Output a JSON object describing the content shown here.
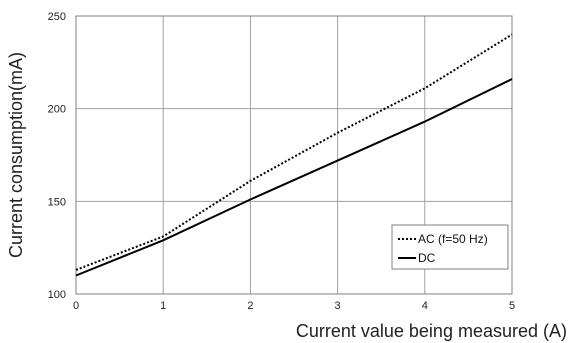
{
  "chart_data": {
    "type": "line",
    "title": "",
    "xlabel": "Current value being measured (A)",
    "ylabel": "Current consumption(mA)",
    "xlim": [
      0,
      5
    ],
    "ylim": [
      100,
      250
    ],
    "x_ticks": [
      0,
      1,
      2,
      3,
      4,
      5
    ],
    "y_ticks": [
      100,
      150,
      200,
      250
    ],
    "grid": true,
    "legend_position": "bottom-right",
    "series": [
      {
        "name": "AC (f=50 Hz)",
        "style": "dotted",
        "color": "#000000",
        "x": [
          0,
          1,
          2,
          3,
          4,
          5
        ],
        "y": [
          113,
          131,
          161,
          187,
          211,
          240
        ]
      },
      {
        "name": "DC",
        "style": "solid",
        "color": "#000000",
        "x": [
          0,
          1,
          2,
          3,
          4,
          5
        ],
        "y": [
          110,
          129,
          151,
          172,
          193,
          216
        ]
      }
    ]
  }
}
